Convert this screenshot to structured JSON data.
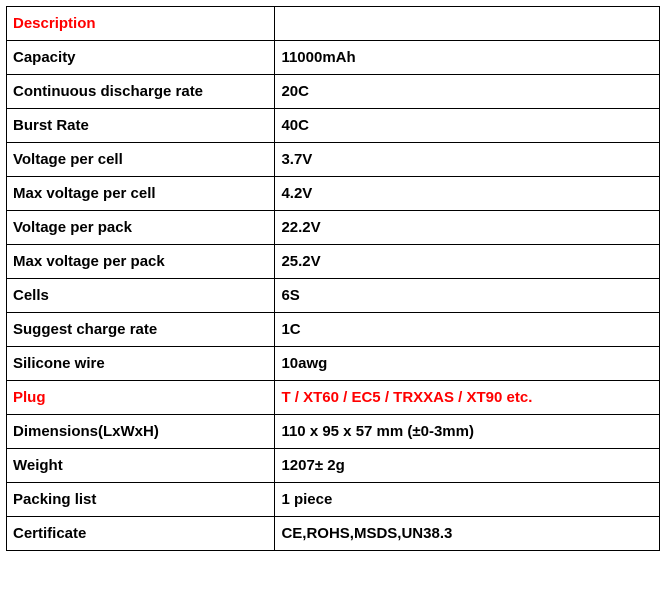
{
  "table": {
    "rows": [
      {
        "label": "Description",
        "value": "",
        "label_color": "#ff0000",
        "value_color": "#000000"
      },
      {
        "label": "Capacity",
        "value": "11000mAh",
        "label_color": "#000000",
        "value_color": "#000000"
      },
      {
        "label": "Continuous discharge rate",
        "value": "20C",
        "label_color": "#000000",
        "value_color": "#000000"
      },
      {
        "label": "Burst Rate",
        "value": "40C",
        "label_color": "#000000",
        "value_color": "#000000"
      },
      {
        "label": "Voltage per cell",
        "value": "3.7V",
        "label_color": "#000000",
        "value_color": "#000000"
      },
      {
        "label": "Max voltage per cell",
        "value": "4.2V",
        "label_color": "#000000",
        "value_color": "#000000"
      },
      {
        "label": "Voltage per pack",
        "value": "22.2V",
        "label_color": "#000000",
        "value_color": "#000000"
      },
      {
        "label": "Max voltage per pack",
        "value": "25.2V",
        "label_color": "#000000",
        "value_color": "#000000"
      },
      {
        "label": "Cells",
        "value": "6S",
        "label_color": "#000000",
        "value_color": "#000000"
      },
      {
        "label": "Suggest charge rate",
        "value": "1C",
        "label_color": "#000000",
        "value_color": "#000000"
      },
      {
        "label": "Silicone wire",
        "value": "10awg",
        "label_color": "#000000",
        "value_color": "#000000"
      },
      {
        "label": "Plug",
        "value": "T / XT60 / EC5 / TRXXAS / XT90 etc.",
        "label_color": "#ff0000",
        "value_color": "#ff0000"
      },
      {
        "label": "Dimensions(LxWxH)",
        "value": "110 x 95 x 57 mm (±0-3mm)",
        "label_color": "#000000",
        "value_color": "#000000"
      },
      {
        "label": "Weight",
        "value": "1207± 2g",
        "label_color": "#000000",
        "value_color": "#000000"
      },
      {
        "label": "Packing list",
        "value": "1 piece",
        "label_color": "#000000",
        "value_color": "#000000"
      },
      {
        "label": "Certificate",
        "value": "CE,ROHS,MSDS,UN38.3",
        "label_color": "#000000",
        "value_color": "#000000"
      }
    ],
    "border_color": "#000000",
    "background_color": "#ffffff",
    "label_col_width": 265,
    "value_col_width": 389,
    "font_size": 15,
    "font_weight": "bold"
  }
}
